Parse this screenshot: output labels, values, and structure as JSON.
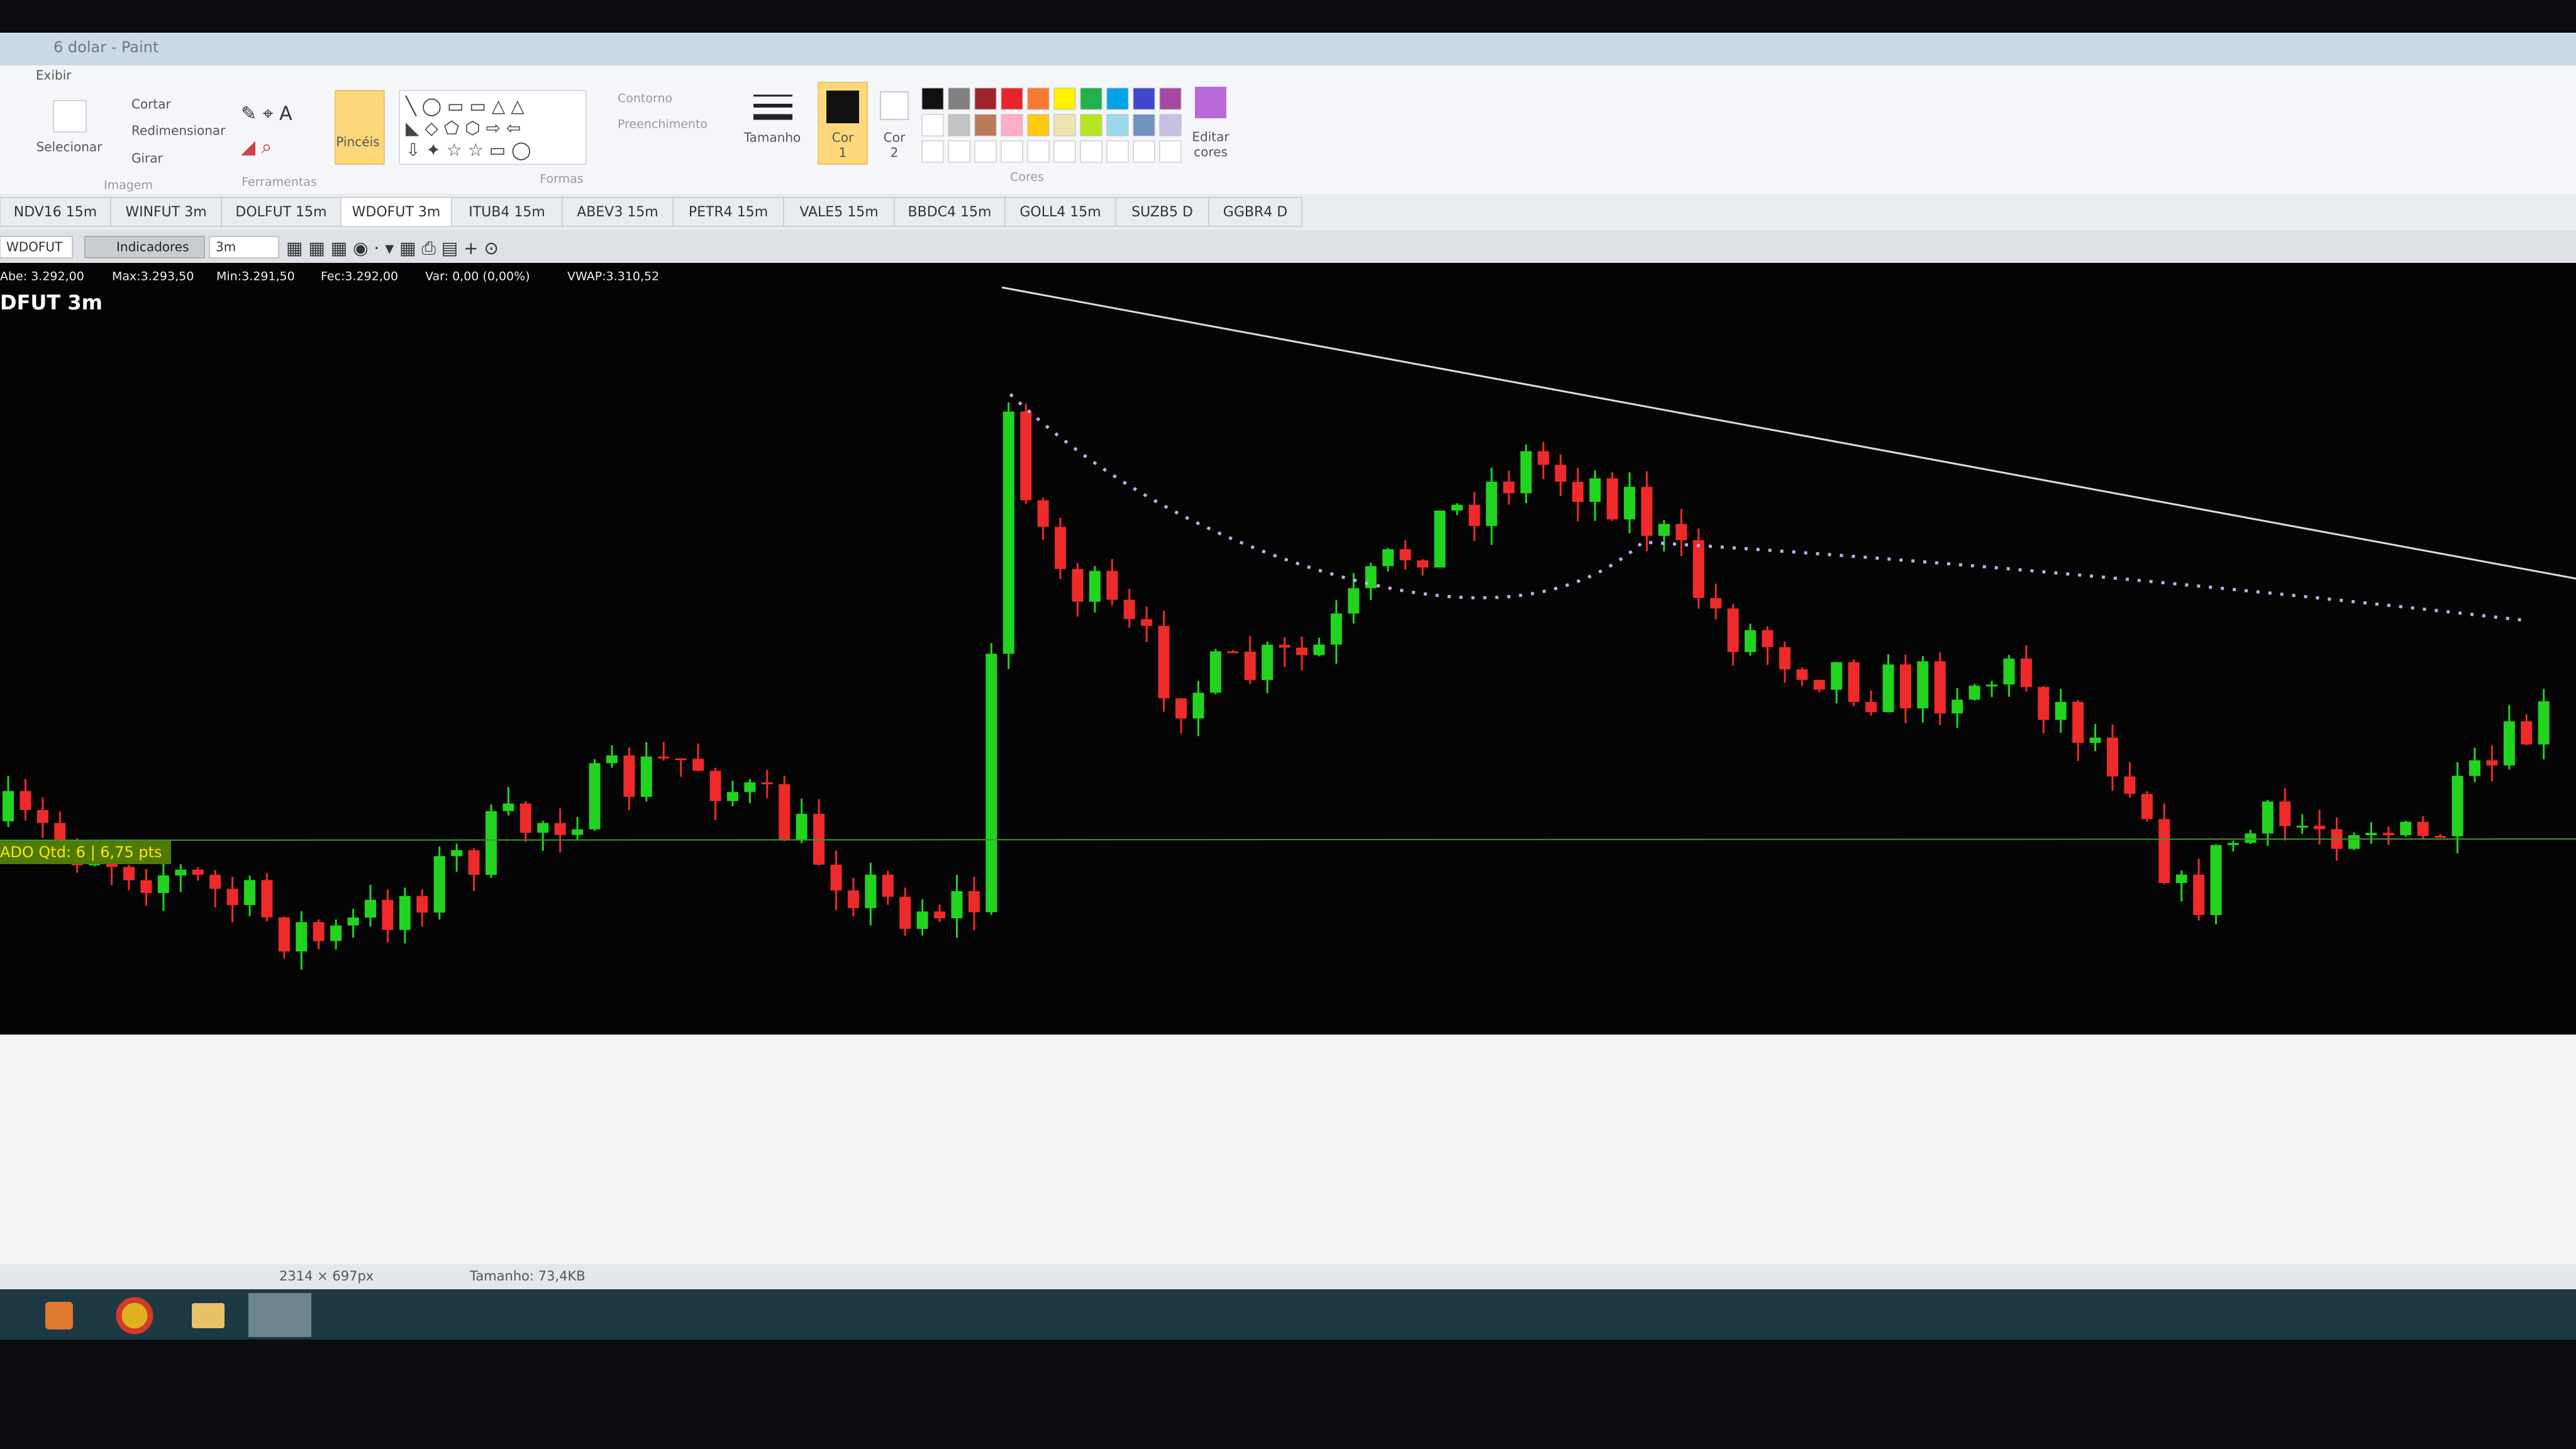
{
  "window": {
    "title": "6 dolar - Paint",
    "menu": "Exibir"
  },
  "ribbon": {
    "select": "Selecionar",
    "cut": "Cortar",
    "resize": "Redimensionar",
    "rotate": "Girar",
    "image_group": "Imagem",
    "tools_group": "Ferramentas",
    "brushes": "Pincéis",
    "outline": "Contorno",
    "fill": "Preenchimento",
    "shapes_group": "Formas",
    "size": "Tamanho",
    "color1": [
      "Cor",
      "1"
    ],
    "color2": [
      "Cor",
      "2"
    ],
    "colors_group": "Cores",
    "edit_colors": [
      "Editar",
      "cores"
    ]
  },
  "tabs": [
    "NDV16 15m",
    "WINFUT 3m",
    "DOLFUT 15m",
    "WDOFUT 3m",
    "ITUB4 15m",
    "ABEV3 15m",
    "PETR4 15m",
    "VALE5 15m",
    "BBDC4 15m",
    "GOLL4 15m",
    "SUZB5 D",
    "GGBR4 D"
  ],
  "toolbar": {
    "symbol": "WDOFUT",
    "indicators": "Indicadores",
    "period": "3m"
  },
  "chart": {
    "info": [
      "Abe: 3.292,00",
      "Max:3.293,50",
      "Min:3.291,50",
      "Fec:3.292,00",
      "Var: 0,00 (0,00%)",
      "VWAP:3.310,52"
    ],
    "title": "DFUT 3m",
    "position_label": "ADO Qtd: 6 | 6,75 pts"
  },
  "status": {
    "dimensions": "2314 × 697px",
    "size": "Tamanho: 73,4KB"
  }
}
